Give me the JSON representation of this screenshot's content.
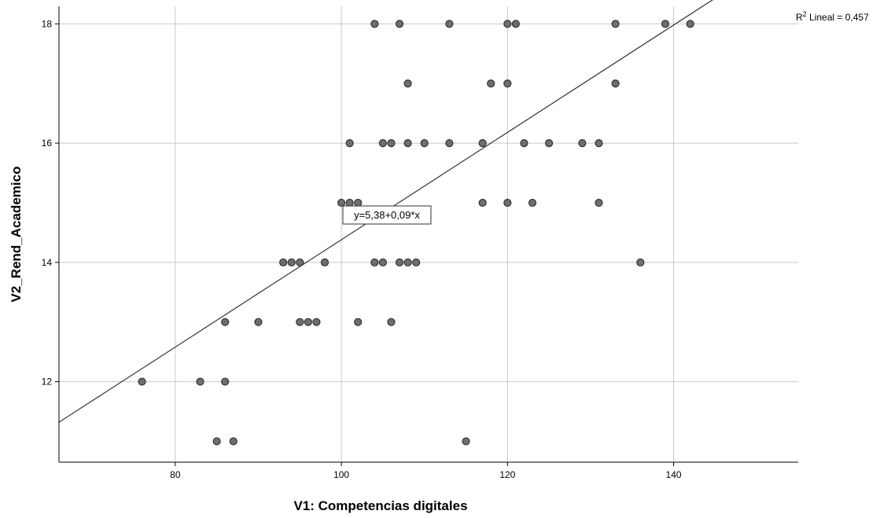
{
  "chart_data": {
    "type": "scatter",
    "xlabel": "V1: Competencias  digitales",
    "ylabel": "V2_Rend_Academico",
    "xlim": [
      66,
      155
    ],
    "ylim": [
      10.65,
      18.4
    ],
    "x_ticks": [
      80,
      100,
      120,
      140
    ],
    "y_ticks": [
      12,
      14,
      16,
      18
    ],
    "grid": true,
    "points": [
      {
        "x": 76,
        "y": 12
      },
      {
        "x": 83,
        "y": 12
      },
      {
        "x": 86,
        "y": 12
      },
      {
        "x": 85,
        "y": 11
      },
      {
        "x": 87,
        "y": 11
      },
      {
        "x": 115,
        "y": 11
      },
      {
        "x": 86,
        "y": 13
      },
      {
        "x": 90,
        "y": 13
      },
      {
        "x": 95,
        "y": 13
      },
      {
        "x": 96,
        "y": 13
      },
      {
        "x": 97,
        "y": 13
      },
      {
        "x": 102,
        "y": 13
      },
      {
        "x": 106,
        "y": 13
      },
      {
        "x": 93,
        "y": 14
      },
      {
        "x": 94,
        "y": 14
      },
      {
        "x": 95,
        "y": 14
      },
      {
        "x": 98,
        "y": 14
      },
      {
        "x": 104,
        "y": 14
      },
      {
        "x": 105,
        "y": 14
      },
      {
        "x": 107,
        "y": 14
      },
      {
        "x": 108,
        "y": 14
      },
      {
        "x": 109,
        "y": 14
      },
      {
        "x": 136,
        "y": 14
      },
      {
        "x": 100,
        "y": 15
      },
      {
        "x": 101,
        "y": 15
      },
      {
        "x": 102,
        "y": 15
      },
      {
        "x": 117,
        "y": 15
      },
      {
        "x": 120,
        "y": 15
      },
      {
        "x": 123,
        "y": 15
      },
      {
        "x": 131,
        "y": 15
      },
      {
        "x": 101,
        "y": 16
      },
      {
        "x": 105,
        "y": 16
      },
      {
        "x": 106,
        "y": 16
      },
      {
        "x": 108,
        "y": 16
      },
      {
        "x": 110,
        "y": 16
      },
      {
        "x": 113,
        "y": 16
      },
      {
        "x": 117,
        "y": 16
      },
      {
        "x": 122,
        "y": 16
      },
      {
        "x": 125,
        "y": 16
      },
      {
        "x": 129,
        "y": 16
      },
      {
        "x": 131,
        "y": 16
      },
      {
        "x": 108,
        "y": 17
      },
      {
        "x": 118,
        "y": 17
      },
      {
        "x": 120,
        "y": 17
      },
      {
        "x": 133,
        "y": 17
      },
      {
        "x": 104,
        "y": 18
      },
      {
        "x": 107,
        "y": 18
      },
      {
        "x": 113,
        "y": 18
      },
      {
        "x": 120,
        "y": 18
      },
      {
        "x": 121,
        "y": 18
      },
      {
        "x": 133,
        "y": 18
      },
      {
        "x": 139,
        "y": 18
      },
      {
        "x": 142,
        "y": 18
      }
    ],
    "fit_line": {
      "intercept": 5.38,
      "slope": 0.09
    },
    "equation_label": "y=5,38+0,09*x",
    "r2_label_prefix": "R",
    "r2_label_sup": "2",
    "r2_label_suffix": " Lineal = 0,457",
    "colors": {
      "marker_fill": "#6e6e6e",
      "marker_stroke": "#333333",
      "grid": "#c8c8c8",
      "line": "#333333"
    }
  }
}
